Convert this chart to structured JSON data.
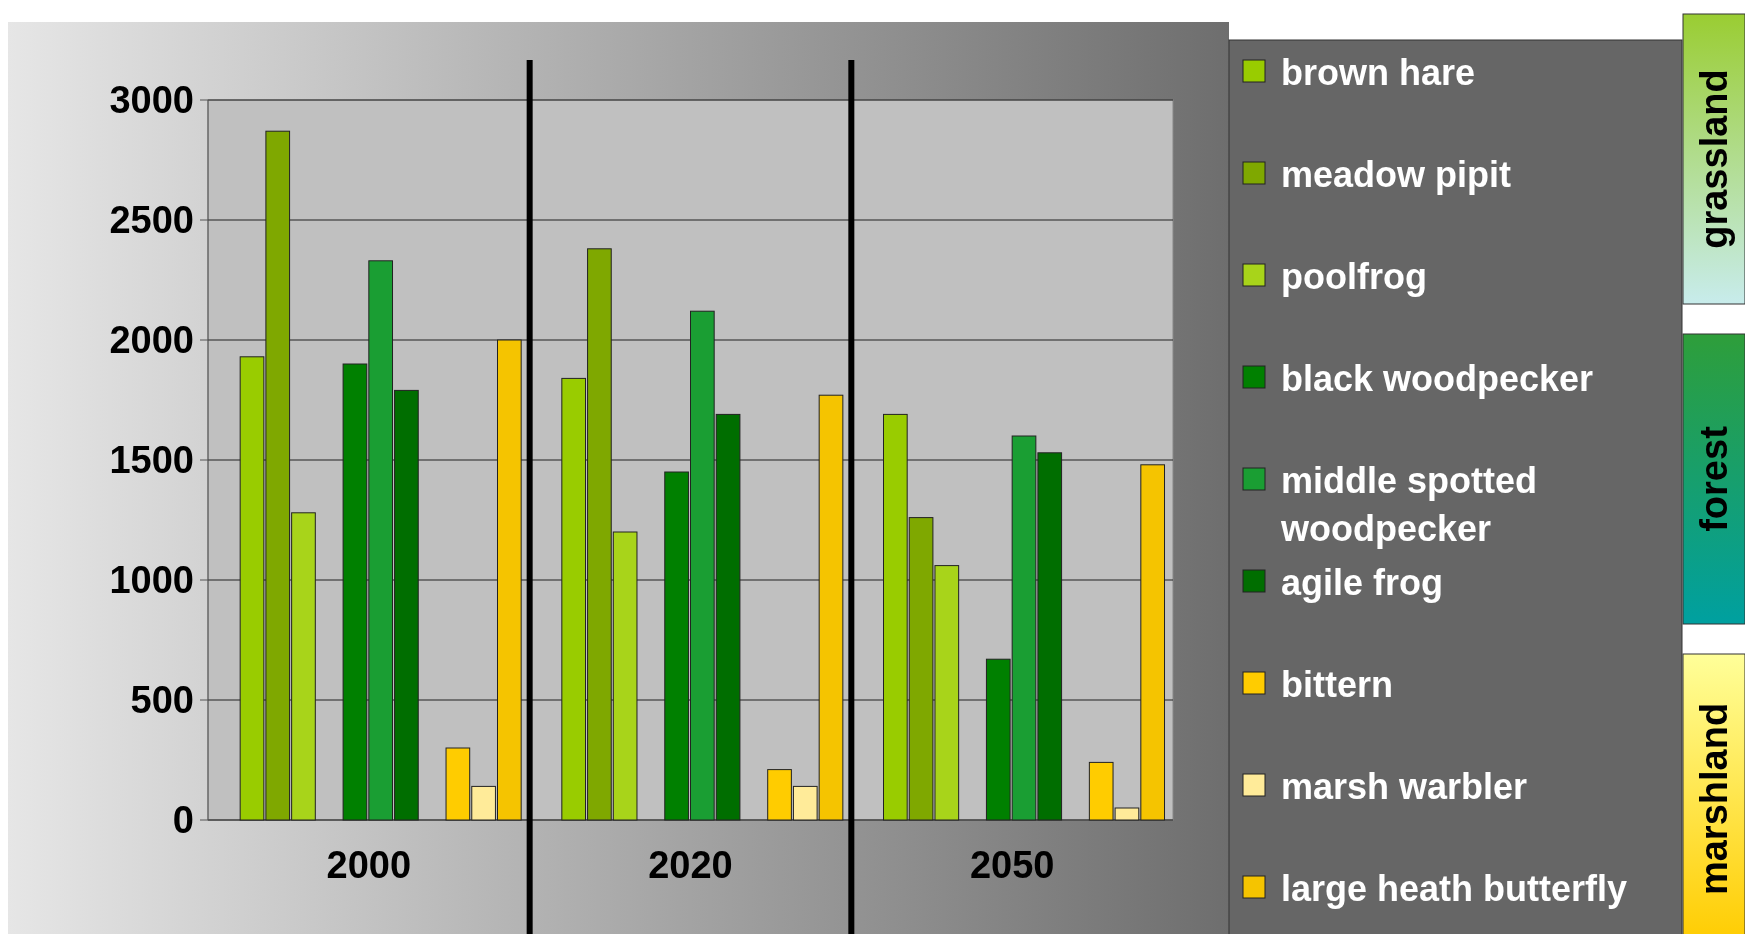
{
  "chart_data": {
    "type": "bar",
    "categories": [
      "2000",
      "2020",
      "2050"
    ],
    "series": [
      {
        "name": "brown hare",
        "color": "#99cc00",
        "values": [
          1930,
          1840,
          1690
        ]
      },
      {
        "name": "meadow pipit",
        "color": "#7fa800",
        "values": [
          2870,
          2380,
          1260
        ]
      },
      {
        "name": "poolfrog",
        "color": "#a8d41a",
        "values": [
          1280,
          1200,
          1060
        ]
      },
      {
        "name": "black woodpecker",
        "color": "#008000",
        "values": [
          1900,
          1450,
          670
        ]
      },
      {
        "name": "middle spotted woodpecker",
        "color": "#1a9e33",
        "values": [
          2330,
          2120,
          1600
        ]
      },
      {
        "name": "agile frog",
        "color": "#006e00",
        "values": [
          1790,
          1690,
          1530
        ]
      },
      {
        "name": "bittern",
        "color": "#ffcc00",
        "values": [
          300,
          210,
          240
        ]
      },
      {
        "name": "marsh warbler",
        "color": "#ffeb99",
        "values": [
          140,
          140,
          50
        ]
      },
      {
        "name": "large heath butterfly",
        "color": "#f5c400",
        "values": [
          2000,
          1770,
          1480
        ]
      }
    ],
    "ylim": [
      0,
      3000
    ],
    "yticks": [
      0,
      500,
      1000,
      1500,
      2000,
      2500,
      3000
    ],
    "grid": "y",
    "legend": "right",
    "annotations": [
      "grassland",
      "forest",
      "marshland"
    ]
  }
}
